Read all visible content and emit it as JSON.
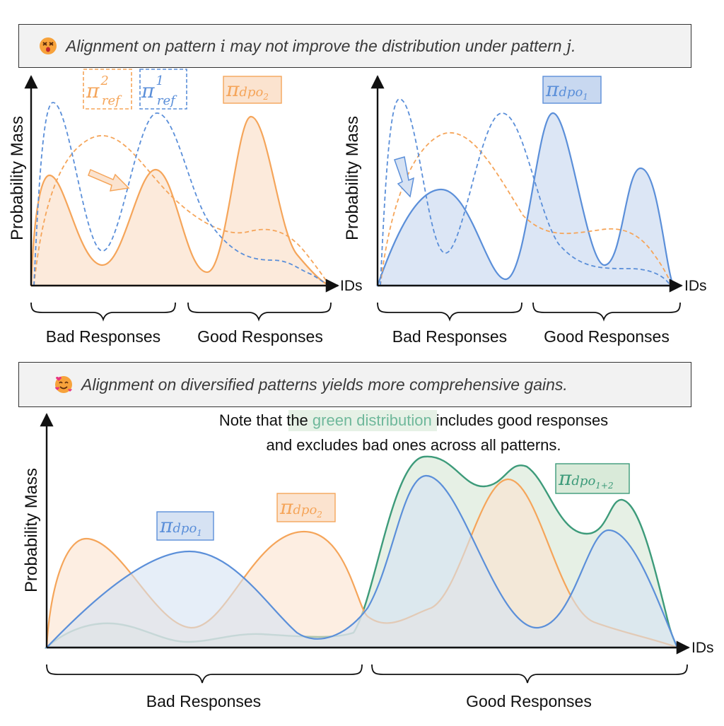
{
  "banner_top": {
    "emoji": "dizzy-face-icon",
    "text_a": "Alignment on pattern ",
    "var_i": "i",
    "text_b": " may not improve the distribution under pattern ",
    "var_j": "j",
    "text_c": "."
  },
  "banner_bottom": {
    "emoji": "smiling-face-with-hearts-icon",
    "text": "Alignment on diversified patterns yields more comprehensive gains."
  },
  "axes": {
    "ylabel": "Probability Mass",
    "xlabel": "IDs",
    "bad": "Bad Responses",
    "good": "Good Responses"
  },
  "labels": {
    "pi": "π",
    "ref": "ref",
    "sup1": "1",
    "sup2": "2",
    "dpo": "dpo",
    "sub1": "1",
    "sub2": "2",
    "sub12": "1+2"
  },
  "note": {
    "line1_a": "Note that the ",
    "line1_green": "green distribution",
    "line1_b": " includes good responses",
    "line2": "and excludes bad ones across all patterns."
  },
  "colors": {
    "orange": "#f5a55a",
    "orange_fill": "#fbe3cf",
    "blue": "#5b8fd9",
    "blue_fill": "#d6e2f3",
    "green": "#3d9b7a",
    "green_fill": "#e3eee2",
    "banner_bg": "#f2f2f2"
  }
}
